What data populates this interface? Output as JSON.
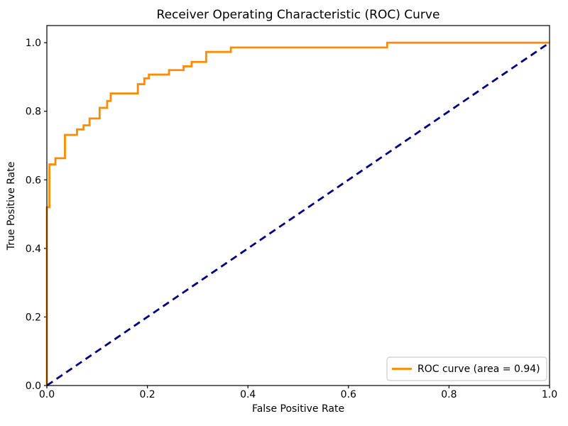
{
  "chart_data": {
    "type": "line",
    "title": "Receiver Operating Characteristic (ROC) Curve",
    "xlabel": "False Positive Rate",
    "ylabel": "True Positive Rate",
    "xlim": [
      0.0,
      1.0
    ],
    "ylim": [
      0.0,
      1.05
    ],
    "grid": false,
    "background_color": "#ffffff",
    "axes_color": "#000000",
    "x_ticks": {
      "values": [
        0.0,
        0.2,
        0.4,
        0.6,
        0.8,
        1.0
      ],
      "labels": [
        "0.0",
        "0.2",
        "0.4",
        "0.6",
        "0.8",
        "1.0"
      ]
    },
    "y_ticks": {
      "values": [
        0.0,
        0.2,
        0.4,
        0.6,
        0.8,
        1.0
      ],
      "labels": [
        "0.0",
        "0.2",
        "0.4",
        "0.6",
        "0.8",
        "1.0"
      ]
    },
    "auc": 0.94,
    "legend": {
      "position": "lower right",
      "border_color": "#cccccc",
      "background_color": "#ffffff",
      "entries": [
        {
          "label": "ROC curve (area = 0.94)",
          "color": "#ff8c00",
          "style": "solid"
        }
      ]
    },
    "series": [
      {
        "name": "ROC curve",
        "color": "#ff8c00",
        "style": "solid",
        "linewidth": 2.8,
        "points": [
          [
            0.0,
            0.0
          ],
          [
            0.0,
            0.52
          ],
          [
            0.005,
            0.52
          ],
          [
            0.005,
            0.645
          ],
          [
            0.017,
            0.645
          ],
          [
            0.017,
            0.663
          ],
          [
            0.036,
            0.663
          ],
          [
            0.036,
            0.731
          ],
          [
            0.06,
            0.731
          ],
          [
            0.06,
            0.747
          ],
          [
            0.073,
            0.747
          ],
          [
            0.073,
            0.759
          ],
          [
            0.085,
            0.759
          ],
          [
            0.085,
            0.779
          ],
          [
            0.105,
            0.779
          ],
          [
            0.105,
            0.81
          ],
          [
            0.12,
            0.81
          ],
          [
            0.12,
            0.83
          ],
          [
            0.127,
            0.83
          ],
          [
            0.127,
            0.852
          ],
          [
            0.181,
            0.852
          ],
          [
            0.181,
            0.879
          ],
          [
            0.194,
            0.879
          ],
          [
            0.194,
            0.896
          ],
          [
            0.203,
            0.896
          ],
          [
            0.203,
            0.907
          ],
          [
            0.243,
            0.907
          ],
          [
            0.243,
            0.92
          ],
          [
            0.272,
            0.92
          ],
          [
            0.272,
            0.931
          ],
          [
            0.288,
            0.931
          ],
          [
            0.288,
            0.944
          ],
          [
            0.317,
            0.944
          ],
          [
            0.317,
            0.973
          ],
          [
            0.366,
            0.973
          ],
          [
            0.366,
            0.986
          ],
          [
            0.677,
            0.986
          ],
          [
            0.677,
            1.0
          ],
          [
            1.0,
            1.0
          ]
        ]
      },
      {
        "name": "chance diagonal",
        "color": "#000080",
        "style": "dashed",
        "linewidth": 2.8,
        "points": [
          [
            0.0,
            0.0
          ],
          [
            1.0,
            1.0
          ]
        ]
      }
    ]
  }
}
